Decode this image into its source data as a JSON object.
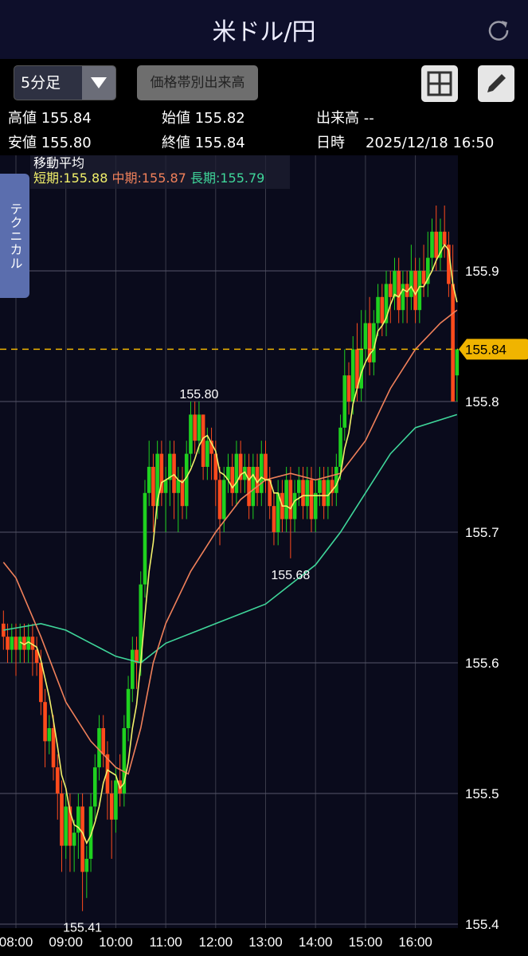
{
  "header": {
    "title": "米ドル/円",
    "refresh_icon": "refresh-icon"
  },
  "toolbar": {
    "timeframe": "5分足",
    "volume_profile": "価格帯別出来高",
    "layout_icon": "grid-icon",
    "draw_icon": "pencil-icon"
  },
  "info": {
    "high_label": "高値",
    "high": "155.84",
    "low_label": "安値",
    "low": "155.80",
    "open_label": "始値",
    "open": "155.82",
    "close_label": "終値",
    "close": "155.84",
    "volume_label": "出来高",
    "volume": "--",
    "datetime_label": "日時",
    "datetime": "2025/12/18 16:50"
  },
  "side_tab": "テクニカル",
  "ma_legend": {
    "title": "移動平均",
    "short": "短期:155.88",
    "mid": "中期:155.87",
    "long": "長期:155.79"
  },
  "colors": {
    "up": "#1fd11f",
    "down": "#ff4b1c",
    "short": "#f2f06a",
    "mid": "#f0805a",
    "long": "#3fd69a",
    "current": "#f0b400",
    "bg": "#0a0b1c"
  },
  "chart_data": {
    "type": "candlestick",
    "interval": "5分足",
    "ylim": [
      155.4,
      155.96
    ],
    "yticks": [
      "155.4",
      "155.5",
      "155.6",
      "155.7",
      "155.8",
      "155.9"
    ],
    "xticks": [
      "08:00",
      "09:00",
      "10:00",
      "11:00",
      "12:00",
      "13:00",
      "14:00",
      "15:00",
      "16:00"
    ],
    "grid": true,
    "current_price": "155.84",
    "annotations": [
      {
        "time": "11:40",
        "price": "155.80",
        "pos": "above"
      },
      {
        "time": "13:30",
        "price": "155.68",
        "pos": "below"
      },
      {
        "time": "09:20",
        "price": "155.41",
        "pos": "below"
      }
    ],
    "candles": [
      [
        "07:45",
        155.63,
        155.64,
        155.61,
        155.62
      ],
      [
        "07:50",
        155.62,
        155.63,
        155.6,
        155.61
      ],
      [
        "07:55",
        155.61,
        155.63,
        155.6,
        155.62
      ],
      [
        "08:00",
        155.62,
        155.63,
        155.59,
        155.61
      ],
      [
        "08:05",
        155.61,
        155.63,
        155.6,
        155.62
      ],
      [
        "08:10",
        155.62,
        155.63,
        155.6,
        155.61
      ],
      [
        "08:15",
        155.61,
        155.63,
        155.6,
        155.62
      ],
      [
        "08:20",
        155.62,
        155.63,
        155.59,
        155.61
      ],
      [
        "08:25",
        155.61,
        155.62,
        155.59,
        155.6
      ],
      [
        "08:30",
        155.6,
        155.61,
        155.56,
        155.57
      ],
      [
        "08:35",
        155.57,
        155.58,
        155.52,
        155.54
      ],
      [
        "08:40",
        155.54,
        155.56,
        155.53,
        155.55
      ],
      [
        "08:45",
        155.55,
        155.56,
        155.51,
        155.52
      ],
      [
        "08:50",
        155.52,
        155.53,
        155.48,
        155.5
      ],
      [
        "08:55",
        155.5,
        155.51,
        155.44,
        155.46
      ],
      [
        "09:00",
        155.46,
        155.5,
        155.45,
        155.49
      ],
      [
        "09:05",
        155.49,
        155.5,
        155.44,
        155.46
      ],
      [
        "09:10",
        155.46,
        155.48,
        155.44,
        155.47
      ],
      [
        "09:15",
        155.47,
        155.5,
        155.45,
        155.49
      ],
      [
        "09:20",
        155.49,
        155.5,
        155.41,
        155.44
      ],
      [
        "09:25",
        155.44,
        155.46,
        155.42,
        155.45
      ],
      [
        "09:30",
        155.45,
        155.5,
        155.44,
        155.49
      ],
      [
        "09:35",
        155.49,
        155.53,
        155.48,
        155.52
      ],
      [
        "09:40",
        155.52,
        155.56,
        155.51,
        155.55
      ],
      [
        "09:45",
        155.55,
        155.56,
        155.52,
        155.53
      ],
      [
        "09:50",
        155.53,
        155.54,
        155.48,
        155.5
      ],
      [
        "09:55",
        155.5,
        155.51,
        155.45,
        155.48
      ],
      [
        "10:00",
        155.48,
        155.52,
        155.47,
        155.51
      ],
      [
        "10:05",
        155.51,
        155.53,
        155.49,
        155.5
      ],
      [
        "10:10",
        155.5,
        155.56,
        155.49,
        155.55
      ],
      [
        "10:15",
        155.55,
        155.59,
        155.54,
        155.58
      ],
      [
        "10:20",
        155.58,
        155.62,
        155.57,
        155.61
      ],
      [
        "10:25",
        155.61,
        155.62,
        155.58,
        155.6
      ],
      [
        "10:30",
        155.6,
        155.67,
        155.59,
        155.66
      ],
      [
        "10:35",
        155.66,
        155.74,
        155.65,
        155.73
      ],
      [
        "10:40",
        155.73,
        155.77,
        155.72,
        155.75
      ],
      [
        "10:45",
        155.75,
        155.76,
        155.7,
        155.72
      ],
      [
        "10:50",
        155.72,
        155.77,
        155.71,
        155.76
      ],
      [
        "10:55",
        155.76,
        155.77,
        155.72,
        155.73
      ],
      [
        "11:00",
        155.73,
        155.75,
        155.7,
        155.74
      ],
      [
        "11:05",
        155.74,
        155.77,
        155.72,
        155.76
      ],
      [
        "11:10",
        155.76,
        155.77,
        155.71,
        155.73
      ],
      [
        "11:15",
        155.73,
        155.75,
        155.7,
        155.74
      ],
      [
        "11:20",
        155.74,
        155.75,
        155.71,
        155.72
      ],
      [
        "11:25",
        155.72,
        155.77,
        155.71,
        155.76
      ],
      [
        "11:30",
        155.76,
        155.8,
        155.75,
        155.79
      ],
      [
        "11:35",
        155.79,
        155.8,
        155.76,
        155.77
      ],
      [
        "11:40",
        155.77,
        155.8,
        155.76,
        155.79
      ],
      [
        "11:45",
        155.79,
        155.79,
        155.74,
        155.75
      ],
      [
        "11:50",
        155.75,
        155.78,
        155.74,
        155.77
      ],
      [
        "11:55",
        155.77,
        155.78,
        155.74,
        155.76
      ],
      [
        "12:00",
        155.76,
        155.77,
        155.72,
        155.74
      ],
      [
        "12:05",
        155.74,
        155.75,
        155.69,
        155.71
      ],
      [
        "12:10",
        155.71,
        155.75,
        155.7,
        155.74
      ],
      [
        "12:15",
        155.74,
        155.76,
        155.73,
        155.75
      ],
      [
        "12:20",
        155.75,
        155.76,
        155.72,
        155.73
      ],
      [
        "12:25",
        155.73,
        155.77,
        155.72,
        155.76
      ],
      [
        "12:30",
        155.76,
        155.77,
        155.73,
        155.74
      ],
      [
        "12:35",
        155.74,
        155.76,
        155.73,
        155.75
      ],
      [
        "12:40",
        155.75,
        155.76,
        155.71,
        155.72
      ],
      [
        "12:45",
        155.72,
        155.76,
        155.71,
        155.75
      ],
      [
        "12:50",
        155.75,
        155.76,
        155.72,
        155.73
      ],
      [
        "12:55",
        155.73,
        155.77,
        155.72,
        155.76
      ],
      [
        "13:00",
        155.76,
        155.77,
        155.73,
        155.74
      ],
      [
        "13:05",
        155.74,
        155.75,
        155.71,
        155.72
      ],
      [
        "13:10",
        155.72,
        155.73,
        155.69,
        155.7
      ],
      [
        "13:15",
        155.7,
        155.74,
        155.69,
        155.73
      ],
      [
        "13:20",
        155.73,
        155.74,
        155.7,
        155.71
      ],
      [
        "13:25",
        155.71,
        155.75,
        155.7,
        155.74
      ],
      [
        "13:30",
        155.74,
        155.75,
        155.68,
        155.71
      ],
      [
        "13:35",
        155.71,
        155.74,
        155.7,
        155.73
      ],
      [
        "13:40",
        155.73,
        155.75,
        155.72,
        155.74
      ],
      [
        "13:45",
        155.74,
        155.75,
        155.71,
        155.72
      ],
      [
        "13:50",
        155.72,
        155.75,
        155.71,
        155.74
      ],
      [
        "13:55",
        155.74,
        155.75,
        155.7,
        155.71
      ],
      [
        "14:00",
        155.71,
        155.74,
        155.7,
        155.73
      ],
      [
        "14:05",
        155.73,
        155.75,
        155.72,
        155.74
      ],
      [
        "14:10",
        155.74,
        155.75,
        155.71,
        155.72
      ],
      [
        "14:15",
        155.72,
        155.75,
        155.71,
        155.74
      ],
      [
        "14:20",
        155.74,
        155.75,
        155.72,
        155.73
      ],
      [
        "14:25",
        155.73,
        155.76,
        155.72,
        155.75
      ],
      [
        "14:30",
        155.75,
        155.79,
        155.74,
        155.78
      ],
      [
        "14:35",
        155.78,
        155.84,
        155.77,
        155.82
      ],
      [
        "14:40",
        155.82,
        155.83,
        155.79,
        155.8
      ],
      [
        "14:45",
        155.8,
        155.85,
        155.79,
        155.84
      ],
      [
        "14:50",
        155.84,
        155.86,
        155.8,
        155.81
      ],
      [
        "14:55",
        155.81,
        155.87,
        155.8,
        155.84
      ],
      [
        "15:00",
        155.84,
        155.87,
        155.83,
        155.86
      ],
      [
        "15:05",
        155.86,
        155.88,
        155.82,
        155.83
      ],
      [
        "15:10",
        155.83,
        155.87,
        155.82,
        155.86
      ],
      [
        "15:15",
        155.86,
        155.89,
        155.85,
        155.88
      ],
      [
        "15:20",
        155.88,
        155.89,
        155.85,
        155.86
      ],
      [
        "15:25",
        155.86,
        155.9,
        155.85,
        155.89
      ],
      [
        "15:30",
        155.89,
        155.9,
        155.86,
        155.88
      ],
      [
        "15:35",
        155.88,
        155.91,
        155.87,
        155.9
      ],
      [
        "15:40",
        155.9,
        155.91,
        155.86,
        155.87
      ],
      [
        "15:45",
        155.87,
        155.9,
        155.86,
        155.89
      ],
      [
        "15:50",
        155.89,
        155.9,
        155.86,
        155.88
      ],
      [
        "15:55",
        155.88,
        155.92,
        155.87,
        155.9
      ],
      [
        "16:00",
        155.9,
        155.91,
        155.86,
        155.87
      ],
      [
        "16:05",
        155.87,
        155.91,
        155.86,
        155.9
      ],
      [
        "16:10",
        155.9,
        155.92,
        155.88,
        155.89
      ],
      [
        "16:15",
        155.89,
        155.93,
        155.88,
        155.91
      ],
      [
        "16:20",
        155.91,
        155.94,
        155.9,
        155.93
      ],
      [
        "16:25",
        155.93,
        155.95,
        155.9,
        155.91
      ],
      [
        "16:30",
        155.91,
        155.94,
        155.9,
        155.93
      ],
      [
        "16:35",
        155.93,
        155.95,
        155.91,
        155.92
      ],
      [
        "16:40",
        155.92,
        155.93,
        155.88,
        155.89
      ],
      [
        "16:45",
        155.89,
        155.92,
        155.8,
        155.8
      ],
      [
        "16:50",
        155.82,
        155.84,
        155.8,
        155.84
      ]
    ],
    "ma_short_periods": 5,
    "ma_mid": [
      [
        "07:45",
        155.677
      ],
      [
        "08:00",
        155.665
      ],
      [
        "08:30",
        155.62
      ],
      [
        "09:00",
        155.57
      ],
      [
        "09:30",
        155.54
      ],
      [
        "10:00",
        155.52
      ],
      [
        "10:15",
        155.515
      ],
      [
        "10:30",
        155.55
      ],
      [
        "10:45",
        155.6
      ],
      [
        "11:00",
        155.63
      ],
      [
        "11:30",
        155.67
      ],
      [
        "12:00",
        155.7
      ],
      [
        "12:30",
        155.725
      ],
      [
        "13:00",
        155.74
      ],
      [
        "13:30",
        155.745
      ],
      [
        "14:00",
        155.74
      ],
      [
        "14:30",
        155.745
      ],
      [
        "15:00",
        155.77
      ],
      [
        "15:30",
        155.81
      ],
      [
        "16:00",
        155.84
      ],
      [
        "16:30",
        155.86
      ],
      [
        "16:50",
        155.87
      ]
    ],
    "ma_long": [
      [
        "07:45",
        155.625
      ],
      [
        "08:30",
        155.63
      ],
      [
        "09:00",
        155.625
      ],
      [
        "09:30",
        155.615
      ],
      [
        "10:00",
        155.605
      ],
      [
        "10:30",
        155.6
      ],
      [
        "11:00",
        155.615
      ],
      [
        "12:00",
        155.63
      ],
      [
        "13:00",
        155.645
      ],
      [
        "13:30",
        155.66
      ],
      [
        "14:00",
        155.675
      ],
      [
        "14:30",
        155.7
      ],
      [
        "15:00",
        155.73
      ],
      [
        "15:30",
        155.76
      ],
      [
        "16:00",
        155.78
      ],
      [
        "16:50",
        155.79
      ]
    ]
  }
}
